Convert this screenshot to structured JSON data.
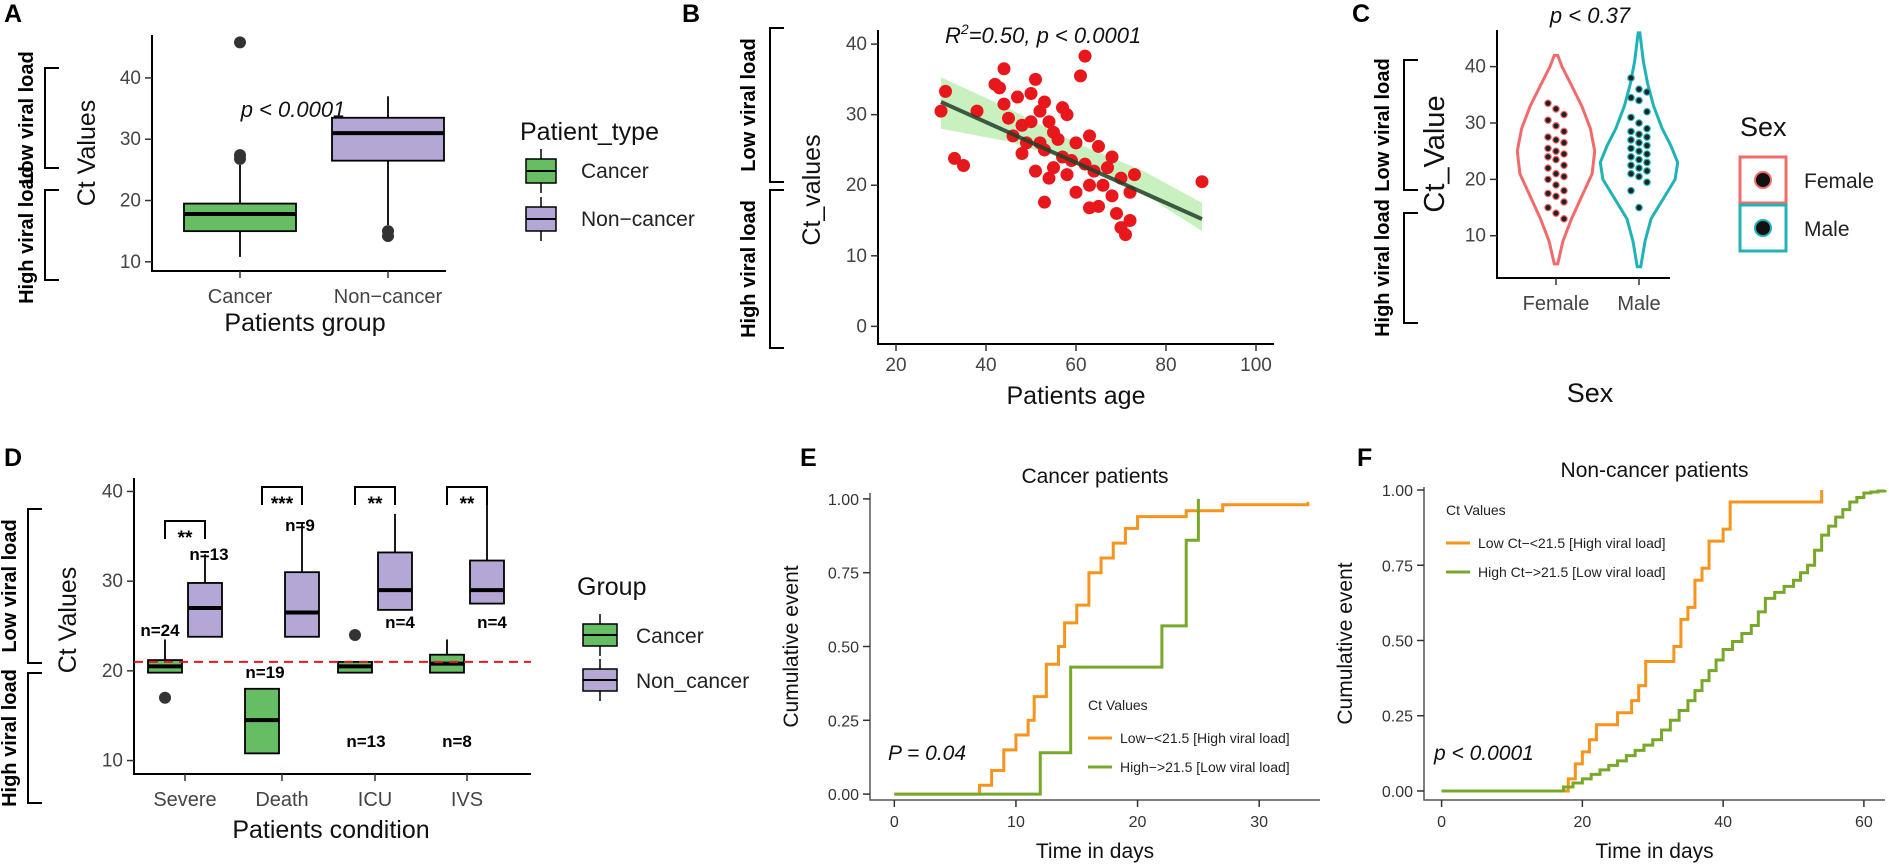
{
  "colors": {
    "cancer_fill": "#66bd63",
    "noncancer_fill": "#b4a7d6",
    "scatter_point": "#e8171c",
    "regression_line": "#24402b",
    "confidence_band": "#b7ecab",
    "female": "#f26b6b",
    "male": "#1fb3b8",
    "low_ct_curve": "#f7941d",
    "high_ct_curve": "#77a82a",
    "cutoff_line": "#e41a1c"
  },
  "panel_letters": [
    "A",
    "B",
    "C",
    "D",
    "E",
    "F"
  ],
  "chart_data": [
    {
      "panel": "A",
      "type": "box",
      "categories": [
        "Cancer",
        "Non−cancer"
      ],
      "boxes": [
        {
          "q1": 15,
          "median": 17.8,
          "q3": 19.5,
          "whisker_low": 10.8,
          "whisker_high": 25.8,
          "outliers": [
            26.8,
            27.4,
            45.8
          ]
        },
        {
          "q1": 26.5,
          "median": 31,
          "q3": 33.5,
          "whisker_low": 16,
          "whisker_high": 37,
          "outliers": [
            14.2,
            15
          ]
        }
      ],
      "xlabel": "Patients group",
      "ylabel": "Ct Values",
      "ylim": [
        8.5,
        47
      ],
      "yticks": [
        10,
        20,
        30,
        40
      ],
      "annotation": "p < 0.0001",
      "legend_title": "Patient_type",
      "legend_entries": [
        "Cancer",
        "Non−cancer"
      ],
      "bracket_upper": "Low viral load",
      "bracket_lower": "High viral load"
    },
    {
      "panel": "B",
      "type": "scatter",
      "annotation_r2": "R",
      "annotation_sup": "2",
      "annotation_rest": "=0.50, p < 0.0001",
      "xlabel": "Patients age",
      "ylabel": "Ct_values",
      "xlim": [
        16,
        104
      ],
      "ylim": [
        -2.5,
        42
      ],
      "xticks": [
        20,
        40,
        60,
        80,
        100
      ],
      "yticks": [
        0,
        10,
        20,
        30,
        40
      ],
      "points": [
        [
          30,
          30.5
        ],
        [
          31,
          33.3
        ],
        [
          33,
          23.8
        ],
        [
          35,
          22.8
        ],
        [
          38,
          30.5
        ],
        [
          42,
          34.3
        ],
        [
          43,
          33.8
        ],
        [
          44,
          31.5
        ],
        [
          45,
          29.5
        ],
        [
          46,
          27
        ],
        [
          47,
          32.5
        ],
        [
          48,
          28.5
        ],
        [
          48,
          24.5
        ],
        [
          49,
          26
        ],
        [
          50,
          33
        ],
        [
          50,
          29
        ],
        [
          51,
          35
        ],
        [
          51,
          22
        ],
        [
          52,
          26
        ],
        [
          52,
          30.5
        ],
        [
          53,
          31.8
        ],
        [
          53,
          25
        ],
        [
          54,
          29
        ],
        [
          54,
          21
        ],
        [
          55,
          22.5
        ],
        [
          55,
          27.5
        ],
        [
          56,
          26.5
        ],
        [
          57,
          31
        ],
        [
          57,
          24
        ],
        [
          58,
          30
        ],
        [
          58,
          21.5
        ],
        [
          59,
          23.5
        ],
        [
          60,
          26
        ],
        [
          60,
          19
        ],
        [
          61,
          35.5
        ],
        [
          62,
          38.3
        ],
        [
          62,
          23
        ],
        [
          63,
          27
        ],
        [
          63,
          20
        ],
        [
          64,
          22
        ],
        [
          65,
          25.5
        ],
        [
          65,
          17
        ],
        [
          66,
          20
        ],
        [
          67,
          22.5
        ],
        [
          68,
          24
        ],
        [
          68,
          18.5
        ],
        [
          69,
          16
        ],
        [
          70,
          21
        ],
        [
          70,
          14
        ],
        [
          71,
          13
        ],
        [
          72,
          15
        ],
        [
          72,
          19
        ],
        [
          73,
          21.5
        ],
        [
          53,
          17.6
        ],
        [
          63,
          16.8
        ],
        [
          44,
          36.5
        ],
        [
          88,
          20.5
        ]
      ],
      "fit": {
        "x0": 30,
        "y0": 31.8,
        "x1": 88,
        "y1": 15.2
      },
      "band_x": [
        30,
        45,
        60,
        75,
        88
      ],
      "band_lower": [
        28.0,
        26.2,
        23.2,
        18.8,
        13.5
      ],
      "band_upper": [
        35.3,
        30.9,
        26.0,
        22.0,
        17.5
      ],
      "bracket_upper": "Low viral load",
      "bracket_lower": "High viral load"
    },
    {
      "panel": "C",
      "type": "violin",
      "title": "p < 0.37",
      "categories": [
        "Female",
        "Male"
      ],
      "xlabel": "Sex",
      "ylabel": "Ct_Value",
      "ylim": [
        2.5,
        46.5
      ],
      "yticks": [
        10,
        20,
        30,
        40
      ],
      "violins": [
        {
          "min": 5,
          "max": 42,
          "profile_y": [
            5,
            9,
            13,
            17,
            21,
            25,
            29,
            33,
            37,
            40,
            42
          ],
          "profile_w": [
            0.02,
            0.08,
            0.18,
            0.3,
            0.42,
            0.45,
            0.4,
            0.3,
            0.17,
            0.07,
            0.02
          ],
          "points": [
            33.5,
            32.5,
            31.5,
            30.5,
            29.5,
            28.5,
            27.5,
            27,
            26.5,
            25.5,
            25,
            24.5,
            24,
            23.5,
            22.5,
            22,
            21,
            20.5,
            20,
            19,
            18,
            17.5,
            17,
            16,
            15,
            14,
            13
          ]
        },
        {
          "min": 4.5,
          "max": 46,
          "profile_y": [
            4.5,
            9,
            13,
            17,
            20,
            23,
            26,
            29,
            33,
            37,
            41,
            46
          ],
          "profile_w": [
            0.02,
            0.07,
            0.14,
            0.3,
            0.42,
            0.45,
            0.37,
            0.27,
            0.17,
            0.1,
            0.05,
            0.01
          ],
          "points": [
            38,
            36,
            35.5,
            34.5,
            34,
            32,
            31,
            30,
            29,
            28.5,
            28,
            27.5,
            27,
            26.5,
            26,
            25.5,
            25,
            24.5,
            24,
            23.5,
            23,
            22.5,
            22,
            21.5,
            21,
            20.5,
            19.5,
            18,
            15
          ]
        }
      ],
      "legend_title": "Sex",
      "legend_entries": [
        "Female",
        "Male"
      ],
      "bracket_upper": "Low viral load",
      "bracket_lower": "High viral load"
    },
    {
      "panel": "D",
      "type": "box",
      "categories": [
        "Severe",
        "Death",
        "ICU",
        "IVS"
      ],
      "groups": [
        {
          "cancer": {
            "q1": 19.8,
            "median": 20.5,
            "q3": 21.2,
            "whisker_low": 19.8,
            "whisker_high": 23.5,
            "outliers": [
              17
            ],
            "n": "n=24"
          },
          "noncancer": {
            "q1": 23.8,
            "median": 27,
            "q3": 29.8,
            "whisker_low": 23.8,
            "whisker_high": 33,
            "outliers": [],
            "n": "n=13"
          },
          "sig": "**"
        },
        {
          "cancer": {
            "q1": 10.8,
            "median": 14.5,
            "q3": 18,
            "whisker_low": 10.8,
            "whisker_high": 18,
            "outliers": [],
            "n": "n=19"
          },
          "noncancer": {
            "q1": 23.8,
            "median": 26.5,
            "q3": 31,
            "whisker_low": 23.8,
            "whisker_high": 36.5,
            "outliers": [],
            "n": "n=9"
          },
          "sig": "***"
        },
        {
          "cancer": {
            "q1": 19.8,
            "median": 20.5,
            "q3": 21,
            "whisker_low": 19.8,
            "whisker_high": 21,
            "outliers": [
              24
            ],
            "n": "n=13"
          },
          "noncancer": {
            "q1": 26.8,
            "median": 29,
            "q3": 33.2,
            "whisker_low": 26.8,
            "whisker_high": 37.5,
            "outliers": [],
            "n": "n=4"
          },
          "sig": "**"
        },
        {
          "cancer": {
            "q1": 19.8,
            "median": 20.8,
            "q3": 21.8,
            "whisker_low": 19.8,
            "whisker_high": 23.5,
            "outliers": [],
            "n": "n=8"
          },
          "noncancer": {
            "q1": 27.5,
            "median": 29,
            "q3": 32.3,
            "whisker_low": 27.5,
            "whisker_high": 38.5,
            "outliers": [],
            "n": "n=4"
          },
          "sig": "**"
        }
      ],
      "cutoff": 21,
      "xlabel": "Patients condition",
      "ylabel": "Ct Values",
      "ylim": [
        8.5,
        41.5
      ],
      "yticks": [
        10,
        20,
        30,
        40
      ],
      "legend_title": "Group",
      "legend_entries": [
        "Cancer",
        "Non_cancer"
      ],
      "bracket_upper": "Low viral load",
      "bracket_lower": "High viral load"
    },
    {
      "panel": "E",
      "type": "line",
      "title": "Cancer patients",
      "xlabel": "Time in days",
      "ylabel": "Cumulative event",
      "xlim": [
        -2,
        35
      ],
      "ylim": [
        -0.02,
        1.02
      ],
      "xticks": [
        0,
        10,
        20,
        30
      ],
      "yticks": [
        0,
        0.25,
        0.5,
        0.75,
        1
      ],
      "ytick_labels": [
        "0.00",
        "0.25",
        "0.50",
        "0.75",
        "1.00"
      ],
      "annotation": "P = 0.04",
      "legend_title": "Ct Values",
      "series": [
        {
          "name": "Low−<21.5 [High viral load]",
          "color_key": "low_ct_curve",
          "steps": [
            [
              0,
              0
            ],
            [
              7,
              0
            ],
            [
              7,
              0.03
            ],
            [
              8,
              0.03
            ],
            [
              8,
              0.08
            ],
            [
              9,
              0.08
            ],
            [
              9,
              0.15
            ],
            [
              10,
              0.15
            ],
            [
              10,
              0.2
            ],
            [
              11,
              0.2
            ],
            [
              11,
              0.25
            ],
            [
              11.5,
              0.25
            ],
            [
              11.5,
              0.33
            ],
            [
              12.5,
              0.33
            ],
            [
              12.5,
              0.44
            ],
            [
              13.5,
              0.44
            ],
            [
              13.5,
              0.5
            ],
            [
              14,
              0.5
            ],
            [
              14,
              0.58
            ],
            [
              15,
              0.58
            ],
            [
              15,
              0.64
            ],
            [
              16,
              0.64
            ],
            [
              16,
              0.75
            ],
            [
              17,
              0.75
            ],
            [
              17,
              0.8
            ],
            [
              18,
              0.8
            ],
            [
              18,
              0.85
            ],
            [
              19,
              0.85
            ],
            [
              19,
              0.9
            ],
            [
              20,
              0.9
            ],
            [
              20,
              0.94
            ],
            [
              24,
              0.94
            ],
            [
              24,
              0.96
            ],
            [
              27,
              0.96
            ],
            [
              27,
              0.98
            ],
            [
              34,
              0.98
            ],
            [
              34,
              0.99
            ]
          ]
        },
        {
          "name": "High−>21.5 [Low viral load]",
          "color_key": "high_ct_curve",
          "steps": [
            [
              0,
              0
            ],
            [
              12,
              0
            ],
            [
              12,
              0.14
            ],
            [
              14.5,
              0.14
            ],
            [
              14.5,
              0.43
            ],
            [
              22,
              0.43
            ],
            [
              22,
              0.57
            ],
            [
              24,
              0.57
            ],
            [
              24,
              0.86
            ],
            [
              25,
              0.86
            ],
            [
              25,
              1.0
            ]
          ]
        }
      ]
    },
    {
      "panel": "F",
      "type": "line",
      "title": "Non-cancer patients",
      "xlabel": "Time in days",
      "ylabel": "Cumulative event",
      "xlim": [
        -2.5,
        63
      ],
      "ylim": [
        -0.03,
        1.01
      ],
      "xticks": [
        0,
        20,
        40,
        60
      ],
      "yticks": [
        0,
        0.25,
        0.5,
        0.75,
        1
      ],
      "ytick_labels": [
        "0.00",
        "0.25",
        "0.50",
        "0.75",
        "1.00"
      ],
      "annotation": "p < 0.0001",
      "legend_title": "Ct Values",
      "series": [
        {
          "name": "Low Ct−<21.5 [High viral load]",
          "color_key": "low_ct_curve",
          "steps": [
            [
              0,
              0
            ],
            [
              18,
              0
            ],
            [
              18,
              0.04
            ],
            [
              19,
              0.04
            ],
            [
              19,
              0.09
            ],
            [
              20,
              0.09
            ],
            [
              20,
              0.13
            ],
            [
              21,
              0.13
            ],
            [
              21,
              0.17
            ],
            [
              22,
              0.17
            ],
            [
              22,
              0.22
            ],
            [
              25,
              0.22
            ],
            [
              25,
              0.26
            ],
            [
              27,
              0.26
            ],
            [
              27,
              0.3
            ],
            [
              28,
              0.3
            ],
            [
              28,
              0.35
            ],
            [
              29,
              0.35
            ],
            [
              29,
              0.43
            ],
            [
              33,
              0.43
            ],
            [
              33,
              0.48
            ],
            [
              34,
              0.48
            ],
            [
              34,
              0.57
            ],
            [
              35,
              0.57
            ],
            [
              35,
              0.61
            ],
            [
              36,
              0.61
            ],
            [
              36,
              0.7
            ],
            [
              37,
              0.7
            ],
            [
              37,
              0.74
            ],
            [
              38,
              0.74
            ],
            [
              38,
              0.83
            ],
            [
              40,
              0.83
            ],
            [
              40,
              0.87
            ],
            [
              41,
              0.87
            ],
            [
              41,
              0.96
            ],
            [
              54,
              0.96
            ],
            [
              54,
              1.0
            ]
          ]
        },
        {
          "name": "High Ct−>21.5 [Low viral load]",
          "color_key": "high_ct_curve",
          "curve": [
            [
              0,
              0
            ],
            [
              16,
              0
            ],
            [
              20,
              0.04
            ],
            [
              25,
              0.1
            ],
            [
              30,
              0.17
            ],
            [
              35,
              0.3
            ],
            [
              38,
              0.4
            ],
            [
              40,
              0.47
            ],
            [
              44,
              0.55
            ],
            [
              46,
              0.64
            ],
            [
              50,
              0.7
            ],
            [
              52,
              0.75
            ],
            [
              54,
              0.85
            ],
            [
              56,
              0.91
            ],
            [
              58,
              0.96
            ],
            [
              60,
              0.99
            ],
            [
              63,
              1.0
            ]
          ]
        }
      ]
    }
  ]
}
